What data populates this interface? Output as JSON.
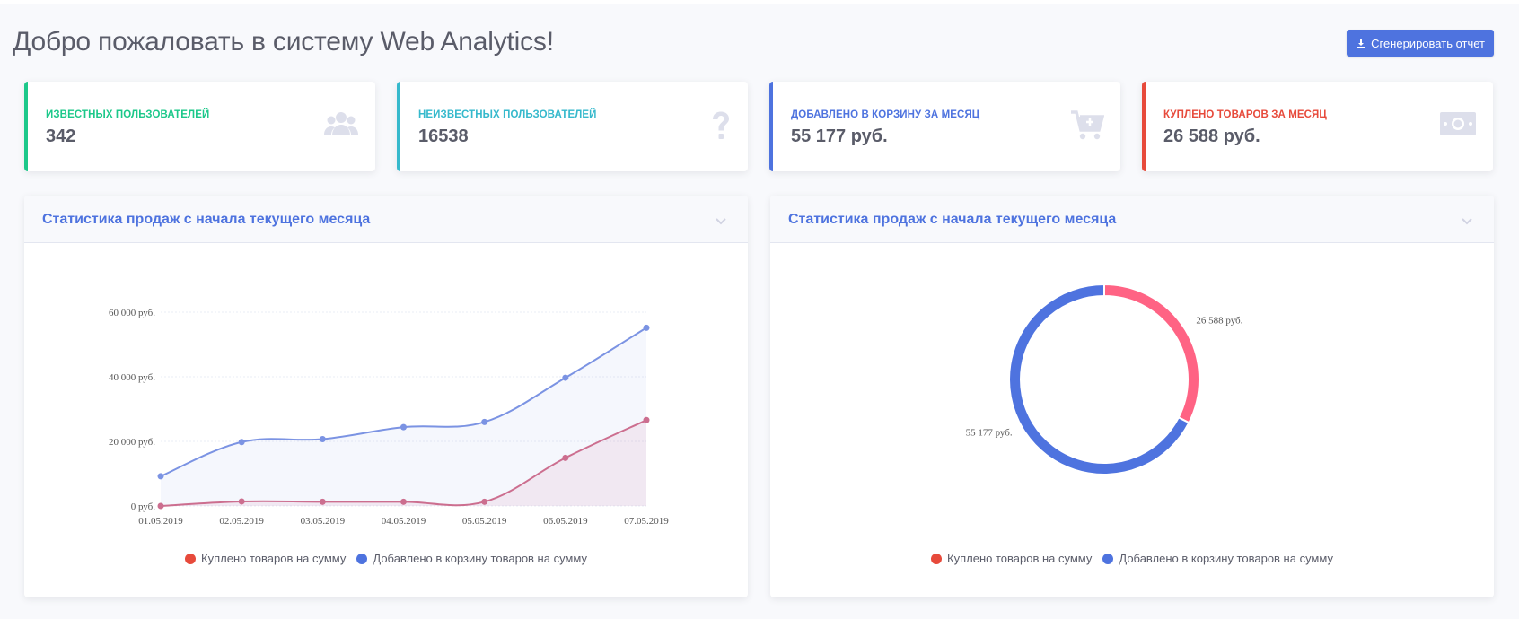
{
  "page": {
    "title": "Добро пожаловать в систему Web Analytics!",
    "generate_button": "Сгенерировать отчет"
  },
  "cards": [
    {
      "label": "Известных пользователей",
      "value": "342",
      "color": "#1cc88a",
      "icon": "users-icon"
    },
    {
      "label": "Неизвестных пользователей",
      "value": "16538",
      "color": "#36b9cc",
      "icon": "question-icon"
    },
    {
      "label": "Добавлено в корзину за месяц",
      "value": "55 177 руб.",
      "color": "#4e73df",
      "icon": "cart-plus-icon"
    },
    {
      "label": "Куплено товаров за месяц",
      "value": "26 588 руб.",
      "color": "#e74a3b",
      "icon": "money-bill-icon"
    }
  ],
  "panels": {
    "line": {
      "title": "Статистика продаж с начала текущего месяца"
    },
    "donut": {
      "title": "Статистика продаж с начала текущего месяца"
    }
  },
  "legend": {
    "bought": "Куплено товаров на сумму",
    "added": "Добавлено в корзину товаров на сумму",
    "bought_color": "#e74a3b",
    "added_color": "#4e73df"
  },
  "chart_data": [
    {
      "type": "line",
      "title": "",
      "x": [
        "01.05.2019",
        "02.05.2019",
        "03.05.2019",
        "04.05.2019",
        "05.05.2019",
        "06.05.2019",
        "07.05.2019"
      ],
      "y_ticks": [
        "0 руб.",
        "20 000 руб.",
        "40 000 руб.",
        "60 000 руб."
      ],
      "ylim": [
        0,
        60000
      ],
      "grid": true,
      "legend_position": "bottom",
      "series": [
        {
          "name": "Добавлено в корзину товаров на сумму",
          "color": "#7b93e3",
          "values": [
            9200,
            19800,
            20700,
            24400,
            26000,
            39700,
            55177
          ]
        },
        {
          "name": "Куплено товаров на сумму",
          "color": "#cc6e8f",
          "values": [
            0,
            1400,
            1300,
            1300,
            1300,
            14900,
            26588
          ]
        }
      ]
    },
    {
      "type": "pie",
      "title": "",
      "legend_position": "bottom",
      "slices": [
        {
          "name": "Куплено товаров на сумму",
          "value": 26588,
          "label": "26 588 руб.",
          "color": "#ff6384"
        },
        {
          "name": "Добавлено в корзину товаров на сумму",
          "value": 55177,
          "label": "55 177 руб.",
          "color": "#4e73df"
        }
      ]
    }
  ]
}
